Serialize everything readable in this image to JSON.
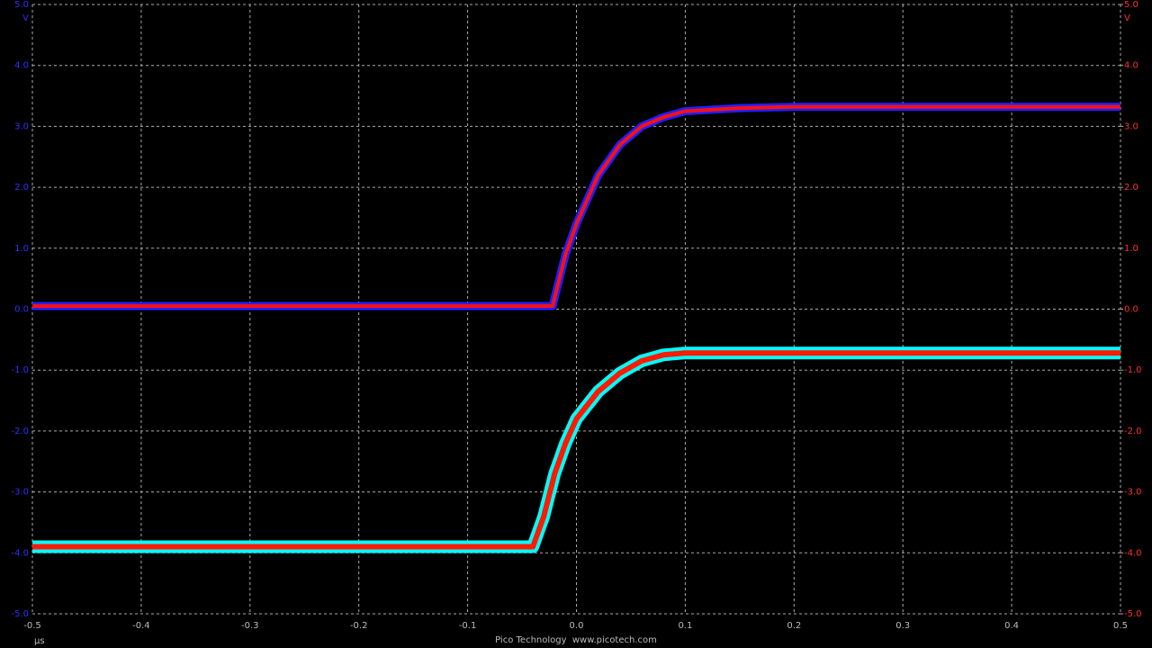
{
  "chart_data": {
    "type": "line",
    "x_label": "µs",
    "y_label": "V",
    "y2_label": "V",
    "footer": "Pico Technology  www.picotech.com",
    "xlim": [
      -0.5,
      0.5
    ],
    "xticks": [
      -0.5,
      -0.4,
      -0.3,
      -0.2,
      -0.1,
      {
        "value": 0,
        "label": "0.0"
      },
      0.1,
      0.2,
      0.3,
      0.4,
      0.5
    ],
    "ylim": [
      -5,
      5
    ],
    "yticks": [
      {
        "value": 5,
        "label": "5.0"
      },
      {
        "value": 4,
        "label": "4.0"
      },
      {
        "value": 3,
        "label": "3.0"
      },
      {
        "value": 2,
        "label": "2.0"
      },
      {
        "value": 1,
        "label": "1.0"
      },
      {
        "value": 0,
        "label": "0.0"
      },
      {
        "value": -1,
        "label": "-1.0"
      },
      {
        "value": -2,
        "label": "-2.0"
      },
      {
        "value": -3,
        "label": "-3.0"
      },
      {
        "value": -4,
        "label": "-4.0"
      },
      {
        "value": -5,
        "label": "-5.0"
      }
    ],
    "y2lim": [
      -5,
      5
    ],
    "y2ticks": [
      {
        "value": 5,
        "label": "5.0"
      },
      {
        "value": 4,
        "label": "4.0"
      },
      {
        "value": 3,
        "label": "3.0"
      },
      {
        "value": 2,
        "label": "2.0"
      },
      {
        "value": 1,
        "label": "1.0"
      },
      {
        "value": 0,
        "label": "0.0"
      },
      {
        "value": -1,
        "label": "-1.0"
      },
      {
        "value": -2,
        "label": "-2.0"
      },
      {
        "value": -3,
        "label": "-3.0"
      },
      {
        "value": -4,
        "label": "-4.0"
      },
      {
        "value": -5,
        "label": "-5.0"
      }
    ],
    "y_color": "#3030ff",
    "y2_color": "#ff3030",
    "grid": true,
    "series": [
      {
        "color": "#ff1010",
        "outline_color": "#2020ff",
        "x": [
          -0.5,
          -0.1,
          -0.022,
          -0.01,
          0,
          0.02,
          0.04,
          0.06,
          0.08,
          0.1,
          0.15,
          0.2,
          0.3,
          0.5
        ],
        "values": [
          0.05,
          0.05,
          0.05,
          0.9,
          1.4,
          2.2,
          2.7,
          3.0,
          3.15,
          3.25,
          3.3,
          3.32,
          3.32,
          3.32
        ]
      },
      {
        "color": "#ff1a00",
        "outline_color": "#00ffff",
        "axis": "y2",
        "x": [
          -0.5,
          -0.04,
          -0.03,
          -0.02,
          -0.01,
          0,
          0.02,
          0.04,
          0.06,
          0.08,
          0.1,
          0.2,
          0.5
        ],
        "values": [
          -3.9,
          -3.9,
          -3.4,
          -2.7,
          -2.2,
          -1.8,
          -1.35,
          -1.05,
          -0.85,
          -0.75,
          -0.72,
          -0.72,
          -0.72
        ]
      }
    ]
  }
}
